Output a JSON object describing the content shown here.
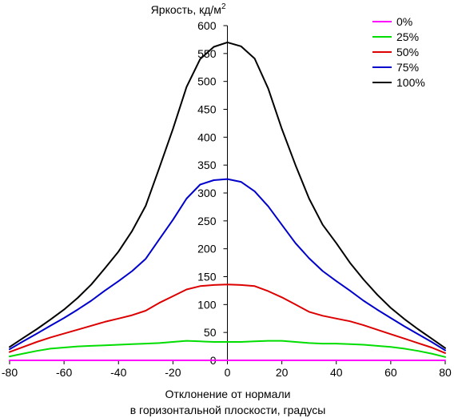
{
  "chart_data": {
    "type": "line",
    "ylabel": "Яркость, кд/м",
    "ylabel_sup": "2",
    "xlabel_line1": "Отклонение от нормали",
    "xlabel_line2": "в горизонтальной плоскости, градусы",
    "xlim": [
      -80,
      80
    ],
    "ylim": [
      0,
      600
    ],
    "xticks": [
      -80,
      -60,
      -40,
      -20,
      0,
      20,
      40,
      60,
      80
    ],
    "yticks": [
      50,
      100,
      150,
      200,
      250,
      300,
      350,
      400,
      450,
      500,
      550,
      600
    ],
    "y_zero_label": "0",
    "grid": false,
    "legend_position": "top-right",
    "x": [
      -80,
      -75,
      -70,
      -65,
      -60,
      -55,
      -50,
      -45,
      -40,
      -35,
      -30,
      -25,
      -20,
      -15,
      -10,
      -5,
      0,
      5,
      10,
      15,
      20,
      25,
      30,
      35,
      40,
      45,
      50,
      55,
      60,
      65,
      70,
      75,
      80
    ],
    "series": [
      {
        "name": "0%",
        "color": "#ff00ff",
        "values": [
          0,
          0,
          0,
          0,
          0,
          0,
          0,
          0,
          0,
          0,
          0,
          0,
          0,
          0,
          0,
          0,
          0,
          0,
          0,
          0,
          0,
          0,
          0,
          0,
          0,
          0,
          0,
          0,
          0,
          0,
          0,
          0,
          0
        ]
      },
      {
        "name": "25%",
        "color": "#00dd00",
        "values": [
          7,
          12,
          17,
          21,
          23,
          25,
          26,
          27,
          28,
          29,
          30,
          31,
          33,
          35,
          34,
          33,
          33,
          33,
          34,
          35,
          35,
          33,
          31,
          30,
          30,
          29,
          28,
          26,
          24,
          21,
          17,
          12,
          6
        ]
      },
      {
        "name": "50%",
        "color": "#dd0000",
        "values": [
          15,
          24,
          33,
          41,
          48,
          55,
          62,
          69,
          75,
          81,
          89,
          103,
          115,
          127,
          133,
          135,
          136,
          135,
          133,
          124,
          113,
          100,
          87,
          80,
          75,
          70,
          63,
          55,
          47,
          39,
          31,
          23,
          13
        ]
      },
      {
        "name": "75%",
        "color": "#0000cc",
        "values": [
          20,
          34,
          48,
          62,
          76,
          91,
          107,
          125,
          142,
          160,
          182,
          217,
          252,
          290,
          315,
          323,
          325,
          320,
          303,
          276,
          243,
          210,
          183,
          160,
          142,
          125,
          107,
          91,
          76,
          61,
          47,
          33,
          18
        ]
      },
      {
        "name": "100%",
        "color": "#000000",
        "values": [
          24,
          40,
          56,
          73,
          91,
          112,
          136,
          165,
          195,
          232,
          277,
          345,
          415,
          490,
          540,
          562,
          570,
          563,
          541,
          487,
          415,
          350,
          290,
          243,
          210,
          175,
          145,
          118,
          94,
          74,
          56,
          39,
          22
        ]
      }
    ]
  }
}
